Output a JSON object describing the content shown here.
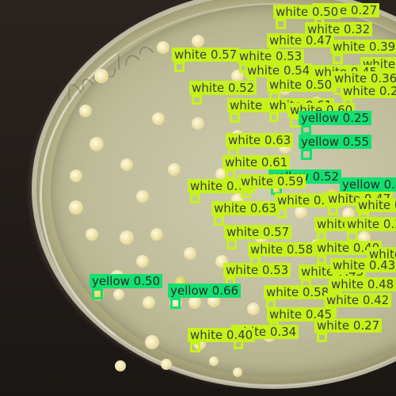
{
  "image": {
    "scene": "petri dish with bacterial colonies, overlaid with object-detection boxes",
    "colors": {
      "white_class": "#c6f21c",
      "yellow_class": "#13e070",
      "label_text": "#3c3c3c"
    }
  },
  "detections": [
    {
      "label": "white",
      "score": "0.27"
    },
    {
      "label": "white",
      "score": "0.50"
    },
    {
      "label": "white",
      "score": "0.32"
    },
    {
      "label": "white",
      "score": "0.47"
    },
    {
      "label": "white",
      "score": "0.39"
    },
    {
      "label": "white",
      "score": "0.57"
    },
    {
      "label": "white",
      "score": "0.53"
    },
    {
      "label": "white",
      "score": "0.28"
    },
    {
      "label": "white",
      "score": "0.54"
    },
    {
      "label": "white",
      "score": "0.45"
    },
    {
      "label": "white",
      "score": "0.36"
    },
    {
      "label": "white",
      "score": "0.50"
    },
    {
      "label": "white",
      "score": "0.52"
    },
    {
      "label": "white",
      "score": "0.26"
    },
    {
      "label": "white",
      "score": "0.67"
    },
    {
      "label": "white",
      "score": "0.61"
    },
    {
      "label": "white",
      "score": "0.60"
    },
    {
      "label": "yellow",
      "score": "0.25"
    },
    {
      "label": "white",
      "score": "0.63"
    },
    {
      "label": "yellow",
      "score": "0.55"
    },
    {
      "label": "white",
      "score": "0.61"
    },
    {
      "label": "yellow",
      "score": "0.52"
    },
    {
      "label": "yellow",
      "score": "0.41"
    },
    {
      "label": "white",
      "score": "0.60"
    },
    {
      "label": "white",
      "score": "0.59"
    },
    {
      "label": "white",
      "score": "0.63"
    },
    {
      "label": "white",
      "score": "0.56"
    },
    {
      "label": "white",
      "score": "0.47"
    },
    {
      "label": "white",
      "score": "0.37"
    },
    {
      "label": "white",
      "score": "0.57"
    },
    {
      "label": "white",
      "score": "0.56"
    },
    {
      "label": "white",
      "score": "0.37"
    },
    {
      "label": "white",
      "score": "0.58"
    },
    {
      "label": "white",
      "score": "0.40"
    },
    {
      "label": "white",
      "score": "0.51"
    },
    {
      "label": "white",
      "score": "0.53"
    },
    {
      "label": "white",
      "score": "0.45"
    },
    {
      "label": "white",
      "score": "0.43"
    },
    {
      "label": "white",
      "score": "0.48"
    },
    {
      "label": "yellow",
      "score": "0.66"
    },
    {
      "label": "white",
      "score": "0.58"
    },
    {
      "label": "white",
      "score": "0.42"
    },
    {
      "label": "white",
      "score": "0.45"
    },
    {
      "label": "white",
      "score": "0.27"
    },
    {
      "label": "white",
      "score": "0.34"
    },
    {
      "label": "white",
      "score": "0.40"
    },
    {
      "label": "yellow",
      "score": "0.50"
    }
  ]
}
